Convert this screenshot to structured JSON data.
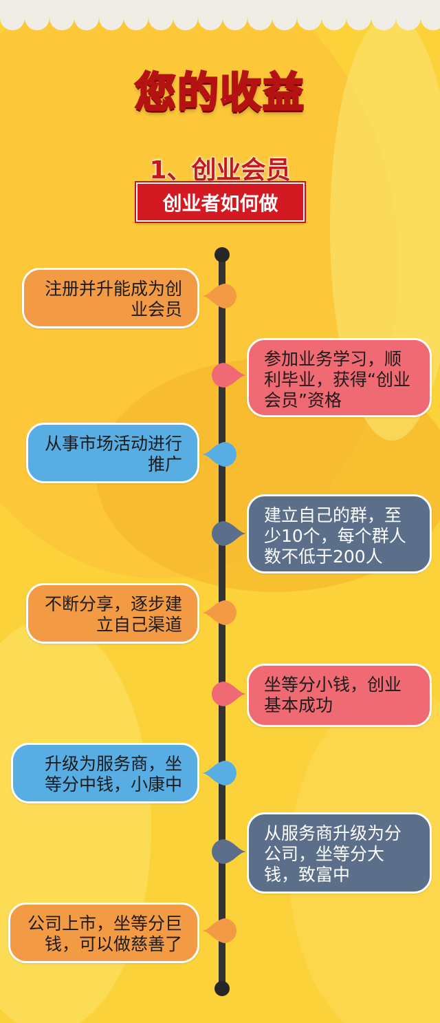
{
  "header": {
    "title": "您的收益",
    "subtitle": "1、创业会员",
    "ribbon_label": "创业者如何做"
  },
  "timeline": {
    "steps": [
      {
        "text": "注册并升能成为创业会员",
        "side": "left",
        "color": "#f39a45"
      },
      {
        "text": "参加业务学习，顺利毕业，获得“创业会员”资格",
        "side": "right",
        "color": "#ef6a73"
      },
      {
        "text": "从事市场活动进行推广",
        "side": "left",
        "color": "#58ade3"
      },
      {
        "text": "建立自己的群，至少10个，每个群人数不低于200人",
        "side": "right",
        "color": "#5b6e8a"
      },
      {
        "text": "不断分享，逐步建立自己渠道",
        "side": "left",
        "color": "#f39a45"
      },
      {
        "text": "坐等分小钱，创业基本成功",
        "side": "right",
        "color": "#ef6a73"
      },
      {
        "text": "升级为服务商，坐等分中钱，小康中",
        "side": "left",
        "color": "#58ade3"
      },
      {
        "text": "从服务商升级为分公司，坐等分大钱，致富中",
        "side": "right",
        "color": "#5b6e8a"
      },
      {
        "text": "公司上市，坐等分巨钱，可以做慈善了",
        "side": "left",
        "color": "#f39a45"
      }
    ]
  },
  "colors": {
    "background": "#fcd23a",
    "ribbon": "#d31a22",
    "title_stroke": "#b51212",
    "axis": "#333333"
  }
}
